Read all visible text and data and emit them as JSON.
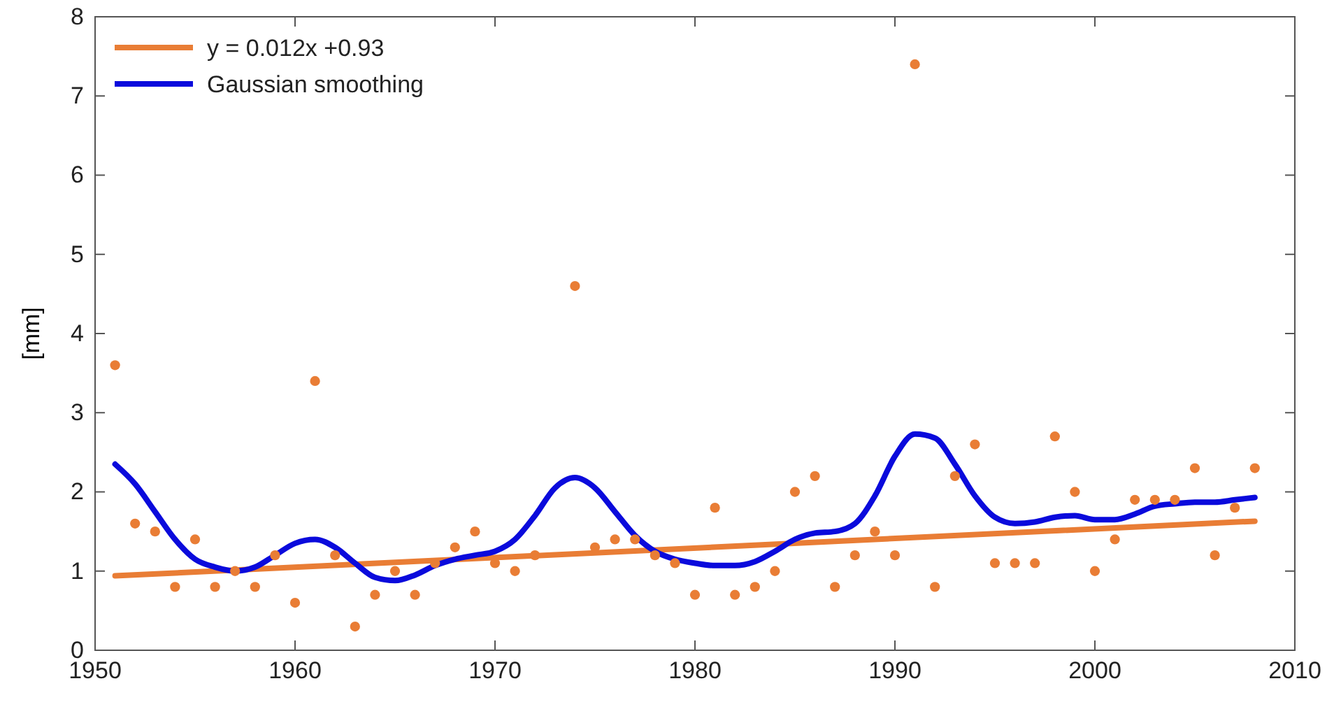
{
  "chart_data": {
    "type": "scatter",
    "ylabel": "[mm]",
    "xlim": [
      1950,
      2010
    ],
    "ylim": [
      0,
      8
    ],
    "xticks": [
      1950,
      1960,
      1970,
      1980,
      1990,
      2000,
      2010
    ],
    "yticks": [
      0,
      1,
      2,
      3,
      4,
      5,
      6,
      7,
      8
    ],
    "grid": false,
    "legend": "top left",
    "series": [
      {
        "marker": "circle",
        "color": "#e97d35",
        "x": [
          1951,
          1952,
          1953,
          1954,
          1955,
          1956,
          1957,
          1958,
          1959,
          1960,
          1961,
          1962,
          1963,
          1964,
          1965,
          1966,
          1967,
          1968,
          1969,
          1970,
          1971,
          1972,
          1974,
          1975,
          1976,
          1977,
          1978,
          1979,
          1980,
          1981,
          1982,
          1983,
          1984,
          1985,
          1986,
          1987,
          1988,
          1989,
          1990,
          1991,
          1992,
          1993,
          1994,
          1995,
          1996,
          1997,
          1998,
          1999,
          2000,
          2001,
          2002,
          2003,
          2004,
          2005,
          2006,
          2007,
          2008
        ],
        "values": [
          3.6,
          1.6,
          1.5,
          0.8,
          1.4,
          0.8,
          1.0,
          0.8,
          1.2,
          0.6,
          3.4,
          1.2,
          0.3,
          0.7,
          1.0,
          0.7,
          1.1,
          1.3,
          1.5,
          1.1,
          1.0,
          1.2,
          4.6,
          1.3,
          1.4,
          1.4,
          1.2,
          1.1,
          0.7,
          1.8,
          0.7,
          0.8,
          1.0,
          2.0,
          2.2,
          0.8,
          1.2,
          1.5,
          1.2,
          7.4,
          0.8,
          2.2,
          2.6,
          1.1,
          1.1,
          1.1,
          2.7,
          2.0,
          1.0,
          1.4,
          1.9,
          1.9,
          1.9,
          2.3,
          1.2,
          1.8,
          2.3
        ]
      },
      {
        "type": "line",
        "marker": "none",
        "name": "y = 0.012x +0.93",
        "color": "#e97d35",
        "x": [
          1951,
          2008
        ],
        "values": [
          0.94,
          1.63
        ]
      },
      {
        "type": "line",
        "marker": "none",
        "name": "Gaussian smoothing",
        "color": "#0a0adc",
        "x": [
          1951,
          1952,
          1953,
          1954,
          1955,
          1956,
          1957,
          1958,
          1959,
          1960,
          1961,
          1962,
          1963,
          1964,
          1965,
          1966,
          1967,
          1968,
          1969,
          1970,
          1971,
          1972,
          1973,
          1974,
          1975,
          1976,
          1977,
          1978,
          1979,
          1980,
          1981,
          1982,
          1983,
          1984,
          1985,
          1986,
          1987,
          1988,
          1989,
          1990,
          1991,
          1992,
          1993,
          1994,
          1995,
          1996,
          1997,
          1998,
          1999,
          2000,
          2001,
          2002,
          2003,
          2004,
          2005,
          2006,
          2007,
          2008
        ],
        "values": [
          2.35,
          2.1,
          1.75,
          1.4,
          1.15,
          1.05,
          1.0,
          1.05,
          1.2,
          1.35,
          1.4,
          1.3,
          1.1,
          0.92,
          0.88,
          0.95,
          1.07,
          1.15,
          1.2,
          1.25,
          1.4,
          1.7,
          2.05,
          2.18,
          2.05,
          1.75,
          1.45,
          1.25,
          1.15,
          1.1,
          1.07,
          1.07,
          1.12,
          1.25,
          1.4,
          1.48,
          1.5,
          1.6,
          1.95,
          2.45,
          2.73,
          2.68,
          2.35,
          1.95,
          1.68,
          1.6,
          1.62,
          1.68,
          1.7,
          1.65,
          1.65,
          1.72,
          1.82,
          1.85,
          1.87,
          1.87,
          1.9,
          1.93
        ]
      }
    ]
  }
}
